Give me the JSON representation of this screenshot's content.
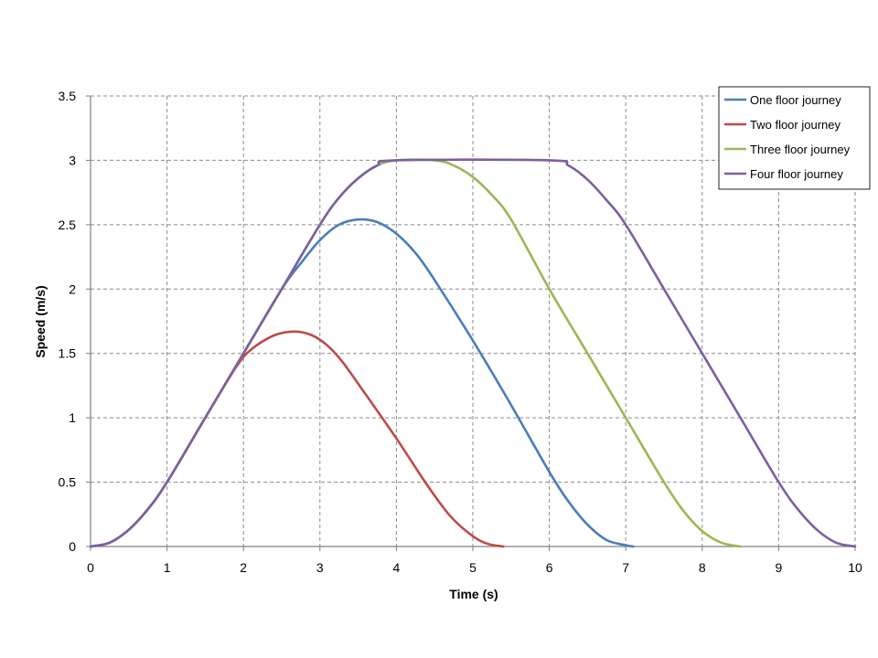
{
  "chart_data": {
    "type": "line",
    "title": "",
    "xlabel": "Time (s)",
    "ylabel": "Speed (m/s)",
    "xlim": [
      0,
      10
    ],
    "ylim": [
      0,
      3.5
    ],
    "x_ticks": [
      "0",
      "1",
      "2",
      "3",
      "4",
      "5",
      "6",
      "7",
      "8",
      "9",
      "10"
    ],
    "y_ticks": [
      "0",
      "0.5",
      "1",
      "1.5",
      "2",
      "2.5",
      "3",
      "3.5"
    ],
    "grid": true,
    "legend_position": "top-right",
    "series": [
      {
        "name": "One floor journey",
        "color": "#4a7ebb",
        "points": [
          [
            0,
            0
          ],
          [
            0.25,
            0.03
          ],
          [
            0.5,
            0.13
          ],
          [
            0.75,
            0.29
          ],
          [
            1,
            0.5
          ],
          [
            1.5,
            1.0
          ],
          [
            2,
            1.5
          ],
          [
            2.5,
            2.0
          ],
          [
            2.75,
            2.2
          ],
          [
            3,
            2.38
          ],
          [
            3.25,
            2.5
          ],
          [
            3.5,
            2.54
          ],
          [
            3.75,
            2.52
          ],
          [
            4,
            2.43
          ],
          [
            4.25,
            2.28
          ],
          [
            4.5,
            2.07
          ],
          [
            5,
            1.6
          ],
          [
            5.5,
            1.1
          ],
          [
            6,
            0.58
          ],
          [
            6.25,
            0.35
          ],
          [
            6.5,
            0.17
          ],
          [
            6.75,
            0.05
          ],
          [
            7,
            0.01
          ],
          [
            7.1,
            0
          ]
        ]
      },
      {
        "name": "Two floor journey",
        "color": "#be4b48",
        "points": [
          [
            0,
            0
          ],
          [
            0.25,
            0.03
          ],
          [
            0.5,
            0.13
          ],
          [
            0.75,
            0.29
          ],
          [
            1,
            0.5
          ],
          [
            1.5,
            1.0
          ],
          [
            1.9,
            1.39
          ],
          [
            2.1,
            1.53
          ],
          [
            2.4,
            1.64
          ],
          [
            2.67,
            1.67
          ],
          [
            2.9,
            1.64
          ],
          [
            3.1,
            1.56
          ],
          [
            3.3,
            1.43
          ],
          [
            3.6,
            1.18
          ],
          [
            4,
            0.84
          ],
          [
            4.4,
            0.48
          ],
          [
            4.7,
            0.24
          ],
          [
            5,
            0.08
          ],
          [
            5.2,
            0.02
          ],
          [
            5.4,
            0
          ]
        ]
      },
      {
        "name": "Three floor journey",
        "color": "#98b954",
        "points": [
          [
            0,
            0
          ],
          [
            0.25,
            0.03
          ],
          [
            0.5,
            0.13
          ],
          [
            0.75,
            0.29
          ],
          [
            1,
            0.5
          ],
          [
            1.5,
            1.0
          ],
          [
            2,
            1.5
          ],
          [
            2.5,
            2.0
          ],
          [
            3,
            2.5
          ],
          [
            3.25,
            2.71
          ],
          [
            3.5,
            2.86
          ],
          [
            3.75,
            2.96
          ],
          [
            4,
            3
          ],
          [
            4.5,
            3
          ],
          [
            4.75,
            2.96
          ],
          [
            5,
            2.87
          ],
          [
            5.25,
            2.73
          ],
          [
            5.5,
            2.54
          ],
          [
            6,
            2.0
          ],
          [
            6.5,
            1.5
          ],
          [
            7,
            1.0
          ],
          [
            7.5,
            0.5
          ],
          [
            7.75,
            0.28
          ],
          [
            8,
            0.12
          ],
          [
            8.25,
            0.03
          ],
          [
            8.5,
            0
          ]
        ]
      },
      {
        "name": "Four floor journey",
        "color": "#7d5fa0",
        "points": [
          [
            0,
            0
          ],
          [
            0.25,
            0.03
          ],
          [
            0.5,
            0.13
          ],
          [
            0.75,
            0.29
          ],
          [
            1,
            0.5
          ],
          [
            1.5,
            1.0
          ],
          [
            2,
            1.5
          ],
          [
            2.5,
            2.0
          ],
          [
            3,
            2.5
          ],
          [
            3.25,
            2.71
          ],
          [
            3.5,
            2.86
          ],
          [
            3.75,
            2.96
          ],
          [
            4,
            3
          ],
          [
            6,
            3
          ],
          [
            6.25,
            2.96
          ],
          [
            6.5,
            2.85
          ],
          [
            6.75,
            2.69
          ],
          [
            7,
            2.5
          ],
          [
            7.5,
            2.0
          ],
          [
            8,
            1.5
          ],
          [
            8.5,
            1.0
          ],
          [
            9,
            0.5
          ],
          [
            9.25,
            0.29
          ],
          [
            9.5,
            0.13
          ],
          [
            9.75,
            0.03
          ],
          [
            10,
            0
          ]
        ]
      }
    ]
  }
}
